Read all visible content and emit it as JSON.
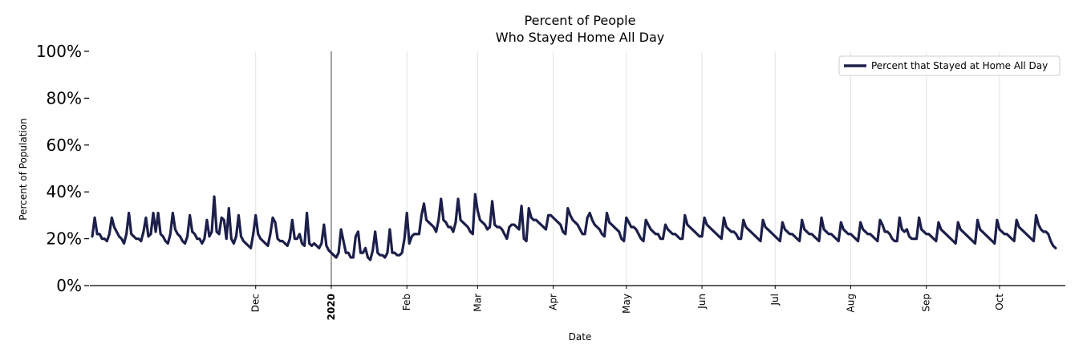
{
  "chart_data": {
    "type": "line",
    "title": [
      "Percent of People",
      "Who Stayed Home All Day"
    ],
    "xlabel": "Date",
    "ylabel": "Percent of Population",
    "ylim": [
      0,
      100
    ],
    "yticks": [
      0,
      20,
      40,
      60,
      80,
      100
    ],
    "ytick_labels": [
      "0%",
      "20%",
      "40%",
      "60%",
      "80%",
      "100%"
    ],
    "xlim_days": [
      -99,
      301
    ],
    "xticks": [
      {
        "label": "Dec",
        "day": -31,
        "bold": false
      },
      {
        "label": "2020",
        "day": 0,
        "bold": true
      },
      {
        "label": "Feb",
        "day": 31,
        "bold": false
      },
      {
        "label": "Mar",
        "day": 60,
        "bold": false
      },
      {
        "label": "Apr",
        "day": 91,
        "bold": false
      },
      {
        "label": "May",
        "day": 121,
        "bold": false
      },
      {
        "label": "Jun",
        "day": 152,
        "bold": false
      },
      {
        "label": "Jul",
        "day": 182,
        "bold": false
      },
      {
        "label": "Aug",
        "day": 213,
        "bold": false
      },
      {
        "label": "Sep",
        "day": 244,
        "bold": false
      },
      {
        "label": "Oct",
        "day": 274,
        "bold": false
      }
    ],
    "year_marker_day": 0,
    "grid": "vertical",
    "legend_position": "top-right",
    "line_color": "#1c1f4a",
    "series": [
      {
        "name": "Percent that Stayed at Home All Day",
        "start_day": -98,
        "values": [
          21,
          29,
          22,
          22,
          20,
          20,
          19,
          22,
          29,
          25,
          23,
          21,
          20,
          18,
          22,
          31,
          22,
          21,
          20,
          20,
          19,
          23,
          29,
          21,
          22,
          31,
          23,
          31,
          22,
          21,
          19,
          18,
          22,
          31,
          24,
          22,
          21,
          19,
          18,
          21,
          30,
          23,
          22,
          20,
          20,
          18,
          20,
          28,
          21,
          23,
          38,
          23,
          22,
          29,
          28,
          20,
          33,
          20,
          18,
          21,
          30,
          21,
          19,
          18,
          17,
          16,
          22,
          30,
          22,
          20,
          19,
          18,
          17,
          22,
          29,
          27,
          20,
          19,
          19,
          18,
          17,
          20,
          28,
          20,
          20,
          22,
          18,
          17,
          31,
          18,
          17,
          18,
          17,
          16,
          18,
          26,
          17,
          15,
          14,
          13,
          12,
          14,
          24,
          19,
          14,
          14,
          12,
          12,
          21,
          23,
          14,
          14,
          16,
          12,
          11,
          15,
          23,
          14,
          13,
          13,
          12,
          14,
          24,
          14,
          14,
          13,
          13,
          14,
          20,
          31,
          18,
          21,
          22,
          22,
          22,
          30,
          35,
          28,
          27,
          26,
          25,
          23,
          28,
          37,
          28,
          27,
          25,
          25,
          23,
          27,
          37,
          28,
          27,
          26,
          25,
          23,
          22,
          39,
          32,
          28,
          27,
          26,
          24,
          25,
          36,
          26,
          25,
          25,
          24,
          22,
          20,
          25,
          26,
          26,
          25,
          24,
          34,
          20,
          19,
          33,
          29,
          28,
          28,
          27,
          26,
          25,
          24,
          30,
          30,
          29,
          28,
          27,
          26,
          23,
          22,
          33,
          30,
          28,
          27,
          26,
          24,
          22,
          22,
          29,
          31,
          28,
          26,
          25,
          24,
          22,
          21,
          31,
          27,
          26,
          25,
          24,
          23,
          20,
          19,
          29,
          27,
          25,
          25,
          24,
          22,
          20,
          19,
          28,
          26,
          24,
          23,
          22,
          22,
          20,
          20,
          26,
          24,
          23,
          22,
          22,
          21,
          20,
          20,
          30,
          26,
          25,
          24,
          23,
          22,
          21,
          21,
          29,
          26,
          25,
          24,
          23,
          22,
          21,
          20,
          29,
          25,
          24,
          23,
          23,
          22,
          20,
          20,
          28,
          25,
          24,
          23,
          22,
          21,
          20,
          19,
          28,
          25,
          24,
          23,
          22,
          21,
          20,
          19,
          27,
          24,
          23,
          22,
          22,
          21,
          20,
          19,
          28,
          24,
          23,
          22,
          22,
          21,
          20,
          19,
          29,
          24,
          23,
          22,
          22,
          21,
          20,
          19,
          27,
          24,
          23,
          22,
          22,
          21,
          20,
          19,
          27,
          24,
          23,
          22,
          22,
          21,
          20,
          19,
          28,
          26,
          23,
          23,
          22,
          20,
          19,
          19,
          29,
          24,
          23,
          24,
          21,
          20,
          20,
          20,
          29,
          24,
          23,
          22,
          22,
          21,
          20,
          19,
          27,
          24,
          23,
          22,
          21,
          20,
          19,
          18,
          27,
          24,
          23,
          22,
          21,
          20,
          19,
          18,
          28,
          24,
          23,
          22,
          21,
          20,
          19,
          18,
          28,
          24,
          23,
          22,
          22,
          21,
          20,
          19,
          28,
          25,
          24,
          23,
          22,
          21,
          20,
          19,
          30,
          26,
          24,
          23,
          23,
          22,
          19,
          17,
          16
        ]
      }
    ]
  }
}
